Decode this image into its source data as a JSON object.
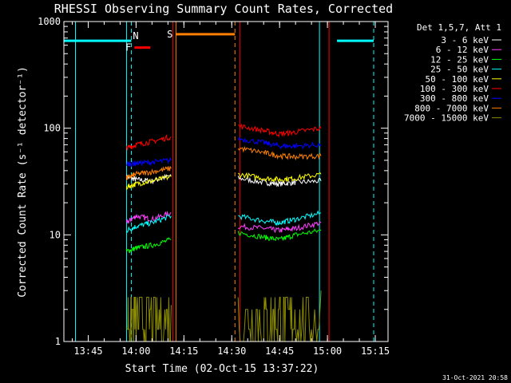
{
  "chart_data": {
    "type": "line",
    "title": "RHESSI Observing Summary Count Rates, Corrected",
    "xlabel": "Start Time (02-Oct-15 13:37:22)",
    "ylabel": "Corrected Count Rate (s⁻¹ detector⁻¹)",
    "yscale": "log",
    "ylim": [
      1,
      1000
    ],
    "xlim": [
      "13:37:22",
      "15:19:00"
    ],
    "xticks": [
      "13:45",
      "14:00",
      "14:15",
      "14:30",
      "14:45",
      "15:00",
      "15:15"
    ],
    "yticks": [
      "1",
      "10",
      "100",
      "1000"
    ],
    "grid": false,
    "legend_position": "right",
    "legend_title": "Det 1,5,7, Att 1",
    "series": [
      {
        "name": "3 - 6 keV",
        "color": "#ffffff",
        "values": [
          [
            [
              "13:57:00",
              35
            ],
            [
              "14:00:00",
              33
            ],
            [
              "14:05:00",
              32
            ],
            [
              "14:11:00",
              36
            ]
          ],
          [
            [
              "14:32:00",
              34
            ],
            [
              "14:40:00",
              31
            ],
            [
              "14:45:00",
              30
            ],
            [
              "14:50:00",
              31
            ],
            [
              "14:58:00",
              32
            ]
          ]
        ]
      },
      {
        "name": "6 - 12 keV",
        "color": "#ff40ff",
        "values": [
          [
            [
              "13:57:00",
              13
            ],
            [
              "14:00:00",
              15
            ],
            [
              "14:05:00",
              14
            ],
            [
              "14:11:00",
              16
            ]
          ],
          [
            [
              "14:32:00",
              12
            ],
            [
              "14:40:00",
              11.5
            ],
            [
              "14:45:00",
              11
            ],
            [
              "14:50:00",
              11.5
            ],
            [
              "14:58:00",
              13
            ]
          ]
        ]
      },
      {
        "name": "12 - 25 keV",
        "color": "#00ff00",
        "values": [
          [
            [
              "13:57:00",
              7
            ],
            [
              "14:00:00",
              7.5
            ],
            [
              "14:05:00",
              8
            ],
            [
              "14:11:00",
              9
            ]
          ],
          [
            [
              "14:32:00",
              10.5
            ],
            [
              "14:40:00",
              9.5
            ],
            [
              "14:45:00",
              9
            ],
            [
              "14:50:00",
              10
            ],
            [
              "14:58:00",
              11
            ]
          ]
        ]
      },
      {
        "name": "25 - 50 keV",
        "color": "#00ffff",
        "values": [
          [
            [
              "13:57:00",
              11
            ],
            [
              "14:00:00",
              12
            ],
            [
              "14:05:00",
              13
            ],
            [
              "14:11:00",
              15
            ]
          ],
          [
            [
              "14:32:00",
              15
            ],
            [
              "14:40:00",
              13.5
            ],
            [
              "14:45:00",
              13
            ],
            [
              "14:50:00",
              14
            ],
            [
              "14:58:00",
              16
            ]
          ]
        ]
      },
      {
        "name": "50 - 100 keV",
        "color": "#ffff00",
        "values": [
          [
            [
              "13:57:00",
              28
            ],
            [
              "14:00:00",
              30
            ],
            [
              "14:05:00",
              32
            ],
            [
              "14:11:00",
              35
            ]
          ],
          [
            [
              "14:32:00",
              37
            ],
            [
              "14:40:00",
              34
            ],
            [
              "14:45:00",
              33
            ],
            [
              "14:50:00",
              34
            ],
            [
              "14:58:00",
              37
            ]
          ]
        ]
      },
      {
        "name": "100 - 300 keV",
        "color": "#ff0000",
        "values": [
          [
            [
              "13:57:00",
              65
            ],
            [
              "14:00:00",
              70
            ],
            [
              "14:05:00",
              75
            ],
            [
              "14:11:00",
              83
            ]
          ],
          [
            [
              "14:32:00",
              105
            ],
            [
              "14:40:00",
              95
            ],
            [
              "14:45:00",
              88
            ],
            [
              "14:50:00",
              92
            ],
            [
              "14:58:00",
              100
            ]
          ]
        ]
      },
      {
        "name": "300 - 800 keV",
        "color": "#0000ff",
        "values": [
          [
            [
              "13:57:00",
              46
            ],
            [
              "14:00:00",
              47
            ],
            [
              "14:05:00",
              48
            ],
            [
              "14:11:00",
              50
            ]
          ],
          [
            [
              "14:32:00",
              80
            ],
            [
              "14:40:00",
              73
            ],
            [
              "14:45:00",
              68
            ],
            [
              "14:50:00",
              68
            ],
            [
              "14:58:00",
              70
            ]
          ]
        ]
      },
      {
        "name": "800 - 7000 keV",
        "color": "#ff8000",
        "values": [
          [
            [
              "13:57:00",
              34
            ],
            [
              "14:00:00",
              37
            ],
            [
              "14:05:00",
              39
            ],
            [
              "14:11:00",
              42
            ]
          ],
          [
            [
              "14:32:00",
              65
            ],
            [
              "14:40:00",
              59
            ],
            [
              "14:45:00",
              55
            ],
            [
              "14:50:00",
              54
            ],
            [
              "14:58:00",
              55
            ]
          ]
        ]
      },
      {
        "name": "7000 - 15000 keV",
        "color": "#8b8b00",
        "values": [
          [
            [
              "13:57:00",
              1.5
            ],
            [
              "14:00:00",
              2
            ],
            [
              "14:05:00",
              2.2
            ],
            [
              "14:11:00",
              2.2
            ]
          ],
          [
            [
              "14:32:00",
              1.6
            ],
            [
              "14:40:00",
              1.6
            ],
            [
              "14:45:00",
              1.6
            ],
            [
              "14:50:00",
              2
            ],
            [
              "14:58:00",
              3
            ]
          ]
        ]
      }
    ],
    "annotations": [
      {
        "label": "F",
        "color": "#ff0000",
        "y": 570,
        "x_start": "13:59:30",
        "x_end": "14:04:30"
      },
      {
        "label": "N",
        "color": "#00ffff",
        "y": 660,
        "x_start": "13:37:22",
        "x_end": "13:58:30"
      },
      {
        "label": "",
        "color": "#00ffff",
        "y": 660,
        "x_start": "15:03:00",
        "x_end": "15:14:30"
      },
      {
        "label": "S",
        "color": "#ff8000",
        "y": 760,
        "x_start": "14:12:30",
        "x_end": "14:31:00"
      }
    ],
    "vertical_markers": [
      {
        "x": "13:41:00",
        "color": "#00ffff",
        "style": "solid"
      },
      {
        "x": "13:57:00",
        "color": "#00ffff",
        "style": "solid"
      },
      {
        "x": "13:58:30",
        "color": "#00ffff",
        "style": "dashed"
      },
      {
        "x": "14:12:30",
        "color": "#ff8000",
        "style": "solid"
      },
      {
        "x": "14:31:00",
        "color": "#ff8000",
        "style": "dashed"
      },
      {
        "x": "14:57:30",
        "color": "#00ffff",
        "style": "solid"
      },
      {
        "x": "15:14:30",
        "color": "#00ffff",
        "style": "dashed"
      },
      {
        "x": "14:11:30",
        "color": "#ff0000",
        "style": "solid"
      },
      {
        "x": "14:32:30",
        "color": "#ff0000",
        "style": "solid"
      },
      {
        "x": "15:00:30",
        "color": "#ff0000",
        "style": "solid"
      }
    ]
  },
  "footer": {
    "timestamp": "31-Oct-2021 20:58"
  }
}
